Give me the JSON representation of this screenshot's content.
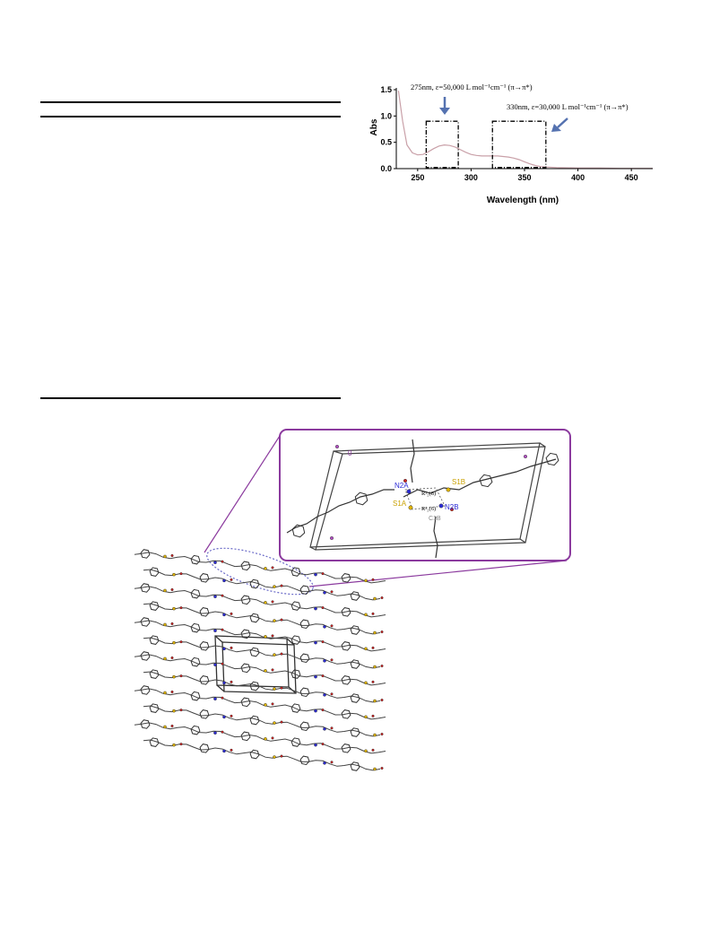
{
  "chart_data": {
    "type": "line",
    "xlabel": "Wavelength (nm)",
    "ylabel": "Abs",
    "xlim": [
      230,
      470
    ],
    "ylim": [
      0,
      1.5
    ],
    "xticks": [
      250,
      300,
      350,
      400,
      450
    ],
    "yticks": [
      0.0,
      0.5,
      1.0,
      1.5
    ],
    "ytick_labels": [
      "0.0",
      "0.5",
      "1.0",
      "1.5"
    ],
    "grid": false,
    "line_color": "#c9a0a8",
    "series": [
      {
        "x": [
          232,
          236,
          240,
          245,
          250,
          255,
          260,
          265,
          270,
          275,
          280,
          285,
          290,
          295,
          300,
          305,
          310,
          315,
          320,
          325,
          330,
          335,
          340,
          345,
          350,
          355,
          360,
          365,
          370,
          380,
          390,
          400,
          420,
          440,
          460,
          470
        ],
        "y": [
          1.48,
          0.9,
          0.45,
          0.3,
          0.26,
          0.27,
          0.32,
          0.38,
          0.43,
          0.45,
          0.44,
          0.41,
          0.36,
          0.31,
          0.27,
          0.25,
          0.24,
          0.24,
          0.24,
          0.24,
          0.23,
          0.22,
          0.2,
          0.17,
          0.13,
          0.09,
          0.06,
          0.04,
          0.03,
          0.02,
          0.015,
          0.01,
          0.01,
          0.005,
          0.005,
          0.005
        ]
      }
    ],
    "annotations": [
      {
        "text": "275nm, ε=50,000 L mol⁻¹cm⁻¹ (π→π*)"
      },
      {
        "text": "330nm, ε=30,000 L mol⁻¹cm⁻¹ (π→π*)"
      }
    ],
    "boxes": [
      {
        "x0": 258,
        "x1": 288,
        "y0": 0.02,
        "y1": 0.9
      },
      {
        "x0": 320,
        "x1": 370,
        "y0": 0.02,
        "y1": 0.9
      }
    ]
  },
  "crystal": {
    "atom_labels": {
      "n2a": "N2A",
      "s1b": "S1B",
      "n2b": "N2B",
      "s1a": "S1A",
      "c1b": "C1B",
      "ring1": "R²₂(8)",
      "ring2": "R²₂(6)",
      "corner1": "0",
      "corner2": "b"
    },
    "colors": {
      "frame": "#8b3a9e",
      "nitrogen": "#2b2bd6",
      "sulfur": "#e0b400",
      "oxygen": "#cc2222",
      "carbon": "#555555"
    }
  }
}
